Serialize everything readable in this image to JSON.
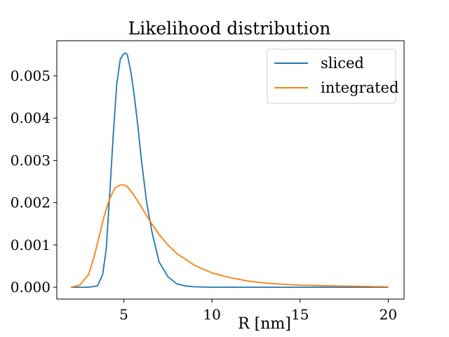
{
  "chart_data": {
    "type": "line",
    "title": "Likelihood distribution",
    "xlabel": "R [nm]",
    "ylabel": "",
    "xlim": [
      1.2,
      20.9
    ],
    "ylim": [
      -0.00028,
      0.00583
    ],
    "xticks": [
      5,
      10,
      15,
      20
    ],
    "xtick_labels": [
      "5",
      "10",
      "15",
      "20"
    ],
    "yticks": [
      0.0,
      0.001,
      0.002,
      0.003,
      0.004,
      0.005
    ],
    "ytick_labels": [
      "0.000",
      "0.001",
      "0.002",
      "0.003",
      "0.004",
      "0.005"
    ],
    "grid": false,
    "legend": "top-right",
    "series": [
      {
        "name": "sliced",
        "color": "#1f77b4",
        "x": [
          2.0,
          3.0,
          3.5,
          3.8,
          4.0,
          4.2,
          4.4,
          4.6,
          4.8,
          5.0,
          5.1,
          5.2,
          5.4,
          5.6,
          5.8,
          6.0,
          6.3,
          6.6,
          7.0,
          7.5,
          8.0,
          8.5,
          9.0,
          10.0,
          12.0,
          15.0,
          20.0
        ],
        "y": [
          0.0,
          0.0,
          3e-05,
          0.0003,
          0.0009,
          0.0022,
          0.0036,
          0.0048,
          0.0054,
          0.00552,
          0.00554,
          0.0055,
          0.0051,
          0.0045,
          0.0038,
          0.003,
          0.002,
          0.0013,
          0.0006,
          0.00025,
          8e-05,
          3e-05,
          1e-05,
          0.0,
          0.0,
          0.0,
          0.0
        ]
      },
      {
        "name": "integrated",
        "color": "#ff7f0e",
        "x": [
          2.0,
          2.5,
          3.0,
          3.3,
          3.6,
          3.9,
          4.2,
          4.5,
          4.8,
          5.0,
          5.2,
          5.5,
          5.8,
          6.0,
          6.5,
          7.0,
          7.5,
          8.0,
          9.0,
          10.0,
          11.0,
          12.0,
          13.0,
          14.0,
          15.0,
          17.0,
          20.0
        ],
        "y": [
          0.0,
          5e-05,
          0.0003,
          0.0007,
          0.0012,
          0.0017,
          0.0021,
          0.00235,
          0.00242,
          0.00242,
          0.00238,
          0.00222,
          0.00203,
          0.0019,
          0.00155,
          0.00125,
          0.001,
          0.0008,
          0.00052,
          0.00034,
          0.00023,
          0.00015,
          0.0001,
          7e-05,
          5e-05,
          3e-05,
          1e-05
        ]
      }
    ]
  }
}
